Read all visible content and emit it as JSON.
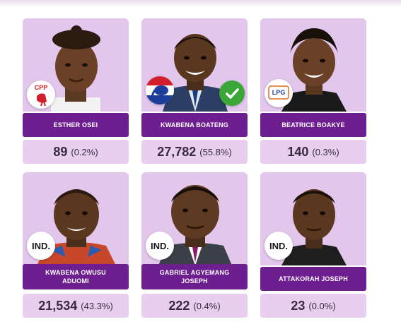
{
  "candidates": [
    {
      "name": "ESTHER OSEI",
      "votes": "89",
      "percent": "(0.2%)",
      "badge_icon": "cpp-cockerel-logo",
      "badge_text": "CPP"
    },
    {
      "name": "KWABENA BOATENG",
      "votes": "27,782",
      "percent": "(55.8%)",
      "badge_icon": "npp-elephant-logo",
      "winner_icon": "check-icon"
    },
    {
      "name": "BEATRICE BOAKYE",
      "votes": "140",
      "percent": "(0.3%)",
      "badge_icon": "lpg-logo",
      "badge_text": "LPG"
    },
    {
      "name": "KWABENA OWUSU ADUOMI",
      "votes": "21,534",
      "percent": "(43.3%)",
      "badge_text": "IND."
    },
    {
      "name": "GABRIEL AGYEMANG JOSEPH",
      "votes": "222",
      "percent": "(0.4%)",
      "badge_text": "IND."
    },
    {
      "name": "ATTAKORAH JOSEPH",
      "votes": "23",
      "percent": "(0.0%)",
      "badge_text": "IND."
    }
  ],
  "colors": {
    "card_bg": "#e2c6ec",
    "name_bar": "#6d1e8f",
    "result_bg": "#e8cff0",
    "winner_check": "#3aa637"
  }
}
